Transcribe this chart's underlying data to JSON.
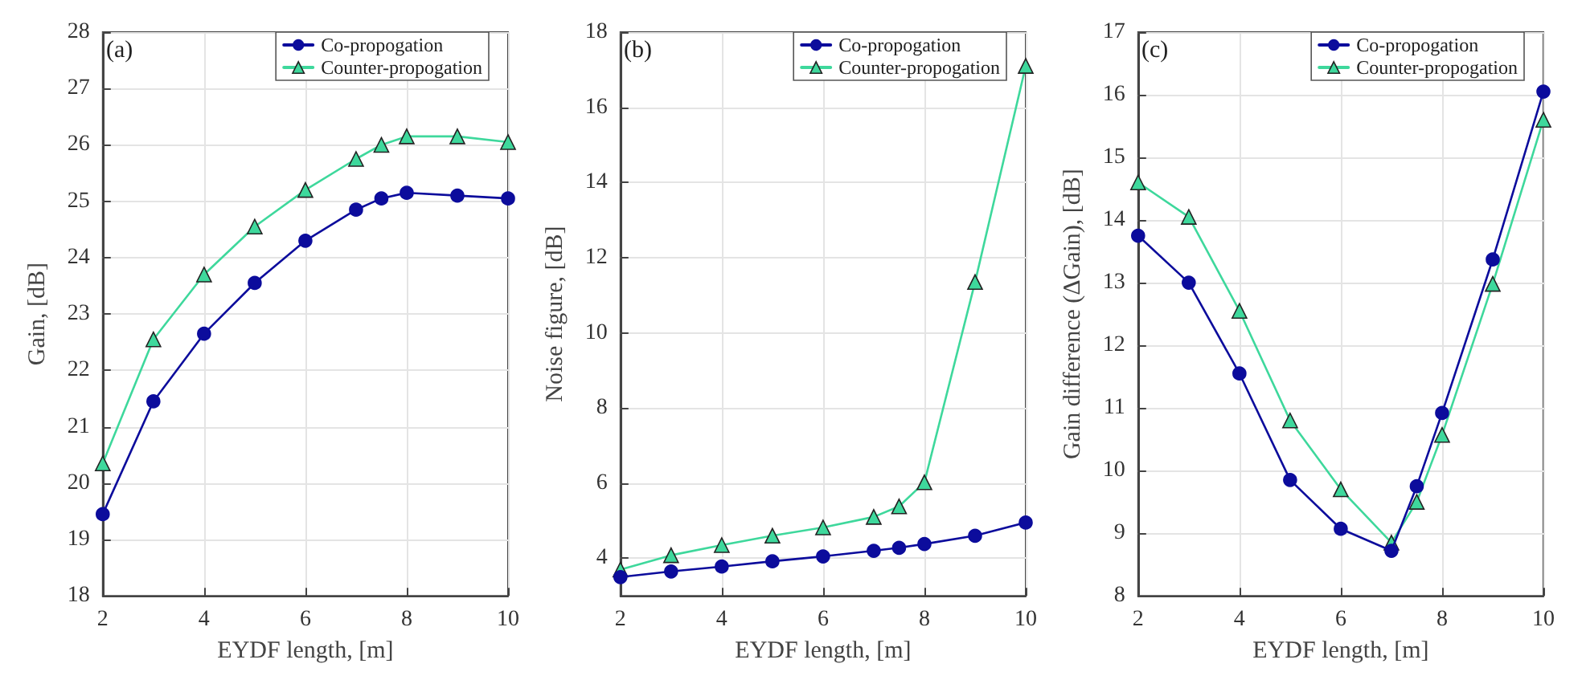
{
  "chart_data": [
    {
      "type": "line",
      "annotations": [
        "(a)"
      ],
      "xlabel": "EYDF length, [m]",
      "ylabel": "Gain, [dB]",
      "x": [
        2,
        3,
        4,
        5,
        6,
        7,
        7.5,
        8,
        9,
        10
      ],
      "xlim": [
        2,
        10
      ],
      "xticks": [
        2,
        4,
        6,
        8,
        10
      ],
      "ylim": [
        18,
        28
      ],
      "yticks": [
        18,
        19,
        20,
        21,
        22,
        23,
        24,
        25,
        26,
        27,
        28
      ],
      "grid": true,
      "legend": "top right",
      "series": [
        {
          "name": "Co-propogation",
          "color": "#0c0c9c",
          "marker": "circle",
          "values": [
            19.45,
            21.45,
            22.65,
            23.55,
            24.3,
            24.85,
            25.05,
            25.15,
            25.1,
            25.05
          ]
        },
        {
          "name": "Counter-propogation",
          "color": "#3ed89c",
          "marker": "triangle",
          "values": [
            20.35,
            22.55,
            23.7,
            24.55,
            25.2,
            25.75,
            26.0,
            26.15,
            26.15,
            26.05
          ]
        }
      ]
    },
    {
      "type": "line",
      "annotations": [
        "(b)"
      ],
      "xlabel": "EYDF length, [m]",
      "ylabel": "Noise figure, [dB]",
      "x": [
        2,
        3,
        4,
        5,
        6,
        7,
        7.5,
        8,
        9,
        10
      ],
      "xlim": [
        2,
        10
      ],
      "xticks": [
        2,
        4,
        6,
        8,
        10
      ],
      "ylim": [
        3,
        18
      ],
      "yticks": [
        4,
        6,
        8,
        10,
        12,
        14,
        16,
        18
      ],
      "grid": true,
      "legend": "top right",
      "series": [
        {
          "name": "Co-propogation",
          "color": "#0c0c9c",
          "marker": "circle",
          "values": [
            3.5,
            3.65,
            3.78,
            3.92,
            4.05,
            4.2,
            4.28,
            4.38,
            4.6,
            4.95
          ]
        },
        {
          "name": "Counter-propogation",
          "color": "#3ed89c",
          "marker": "triangle",
          "values": [
            3.7,
            4.08,
            4.35,
            4.6,
            4.82,
            5.1,
            5.38,
            6.02,
            11.35,
            17.1
          ]
        }
      ]
    },
    {
      "type": "line",
      "annotations": [
        "(c)"
      ],
      "xlabel": "EYDF length, [m]",
      "ylabel": "Gain difference (ΔGain), [dB]",
      "x": [
        2,
        3,
        4,
        5,
        6,
        7,
        7.5,
        8,
        9,
        10
      ],
      "xlim": [
        2,
        10
      ],
      "xticks": [
        2,
        4,
        6,
        8,
        10
      ],
      "ylim": [
        8,
        17
      ],
      "yticks": [
        8,
        9,
        10,
        11,
        12,
        13,
        14,
        15,
        16,
        17
      ],
      "grid": true,
      "legend": "top right",
      "series": [
        {
          "name": "Co-propogation",
          "color": "#0c0c9c",
          "marker": "circle",
          "values": [
            13.75,
            13.0,
            11.55,
            9.85,
            9.07,
            8.72,
            9.75,
            10.92,
            13.37,
            16.05
          ]
        },
        {
          "name": "Counter-propogation",
          "color": "#3ed89c",
          "marker": "triangle",
          "values": [
            14.6,
            14.05,
            12.55,
            10.8,
            9.7,
            8.85,
            9.5,
            10.57,
            12.98,
            15.6
          ]
        }
      ]
    }
  ]
}
